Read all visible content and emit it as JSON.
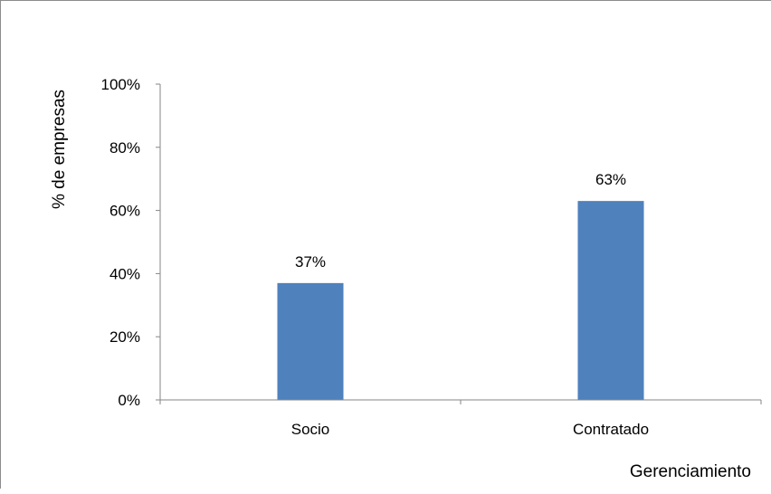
{
  "chart_data": {
    "type": "bar",
    "categories": [
      "Socio",
      "Contratado"
    ],
    "values": [
      37,
      63
    ],
    "data_labels": [
      "37%",
      "63%"
    ],
    "title": "",
    "xlabel": "Gerenciamiento",
    "ylabel": "% de empresas",
    "ylim": [
      0,
      100
    ],
    "yticks": [
      0,
      20,
      40,
      60,
      80,
      100
    ],
    "ytick_labels": [
      "0%",
      "20%",
      "40%",
      "60%",
      "80%",
      "100%"
    ],
    "grid": false,
    "legend": "none",
    "bar_color": "#4f81bd",
    "axis_color": "#868686"
  }
}
